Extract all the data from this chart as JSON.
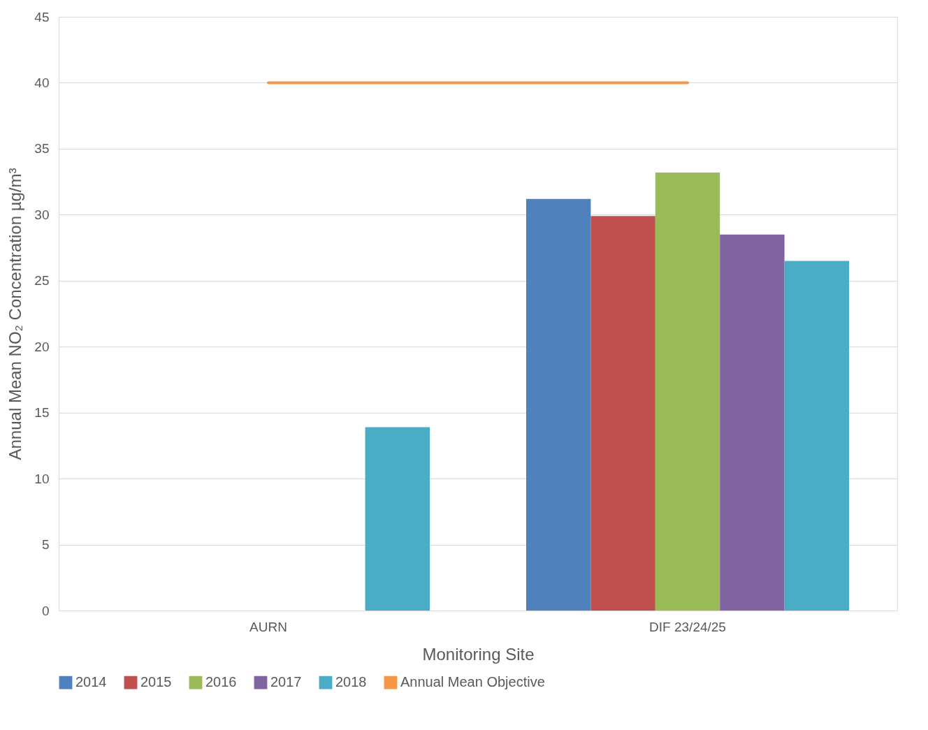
{
  "chart_data": {
    "type": "bar",
    "xlabel": "Monitoring Site",
    "ylabel": "Annual Mean NO₂ Concentration µg/m³",
    "categories": [
      "AURN",
      "DIF 23/24/25"
    ],
    "series": [
      {
        "name": "2014",
        "color": "#4f81bd",
        "values": [
          null,
          31.2
        ]
      },
      {
        "name": "2015",
        "color": "#c0504d",
        "values": [
          null,
          29.9
        ]
      },
      {
        "name": "2016",
        "color": "#9bbb59",
        "values": [
          null,
          33.2
        ]
      },
      {
        "name": "2017",
        "color": "#8064a2",
        "values": [
          null,
          28.5
        ]
      },
      {
        "name": "2018",
        "color": "#4bacc6",
        "values": [
          13.9,
          26.5
        ]
      },
      {
        "name": "Annual Mean Objective",
        "type": "line",
        "color": "#f79646",
        "values": [
          40,
          40
        ]
      }
    ],
    "ylim": [
      0,
      45
    ],
    "yticks": [
      0,
      5,
      10,
      15,
      20,
      25,
      30,
      35,
      40,
      45
    ],
    "grid": "y",
    "legend": "bottom"
  }
}
